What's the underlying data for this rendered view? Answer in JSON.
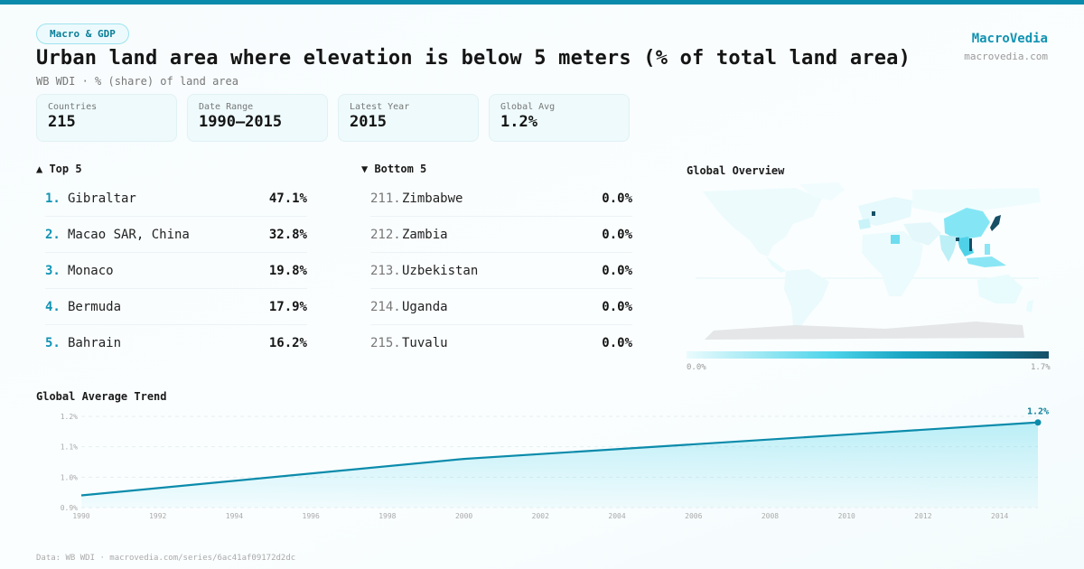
{
  "header": {
    "category_badge": "Macro & GDP",
    "title": "Urban land area where elevation is below 5 meters (% of total land area)",
    "subtitle": "WB WDI · % (share) of land area",
    "brand_name": "MacroVedia",
    "brand_url": "macrovedia.com"
  },
  "stats": [
    {
      "label": "Countries",
      "value": "215"
    },
    {
      "label": "Date Range",
      "value": "1990–2015"
    },
    {
      "label": "Latest Year",
      "value": "2015"
    },
    {
      "label": "Global Avg",
      "value": "1.2%"
    }
  ],
  "top5": {
    "heading": "▲ Top 5",
    "items": [
      {
        "rank": "1.",
        "name": "Gibraltar",
        "value": "47.1%"
      },
      {
        "rank": "2.",
        "name": "Macao SAR, China",
        "value": "32.8%"
      },
      {
        "rank": "3.",
        "name": "Monaco",
        "value": "19.8%"
      },
      {
        "rank": "4.",
        "name": "Bermuda",
        "value": "17.9%"
      },
      {
        "rank": "5.",
        "name": "Bahrain",
        "value": "16.2%"
      }
    ]
  },
  "bottom5": {
    "heading": "▼ Bottom 5",
    "items": [
      {
        "rank": "211.",
        "name": "Zimbabwe",
        "value": "0.0%"
      },
      {
        "rank": "212.",
        "name": "Zambia",
        "value": "0.0%"
      },
      {
        "rank": "213.",
        "name": "Uzbekistan",
        "value": "0.0%"
      },
      {
        "rank": "214.",
        "name": "Uganda",
        "value": "0.0%"
      },
      {
        "rank": "215.",
        "name": "Tuvalu",
        "value": "0.0%"
      }
    ]
  },
  "map": {
    "title": "Global Overview",
    "scale_min": "0.0%",
    "scale_max": "1.7%",
    "colors": {
      "low": "#eafbfd",
      "mid": "#4dd4ea",
      "high": "#164f66",
      "no_data": "#e4e6e8"
    }
  },
  "chart_data": {
    "type": "area",
    "title": "Global Average Trend",
    "x": [
      1990,
      2000,
      2010,
      2015
    ],
    "series": [
      {
        "name": "Global Average",
        "values": [
          0.94,
          1.06,
          1.14,
          1.18
        ]
      }
    ],
    "xlabel": "",
    "ylabel": "",
    "xlim": [
      1990,
      2015
    ],
    "ylim": [
      0.9,
      1.2
    ],
    "x_ticks": [
      1990,
      1992,
      1994,
      1996,
      1998,
      2000,
      2002,
      2004,
      2006,
      2008,
      2010,
      2012,
      2014
    ],
    "y_ticks": [
      0.9,
      1.0,
      1.1,
      1.2
    ],
    "y_tick_labels": [
      "0.9%",
      "1.0%",
      "1.1%",
      "1.2%"
    ],
    "end_label": "1.2%",
    "grid": true,
    "color": "#0b8bab"
  },
  "footer": "Data: WB WDI · macrovedia.com/series/6ac41af09172d2dc"
}
